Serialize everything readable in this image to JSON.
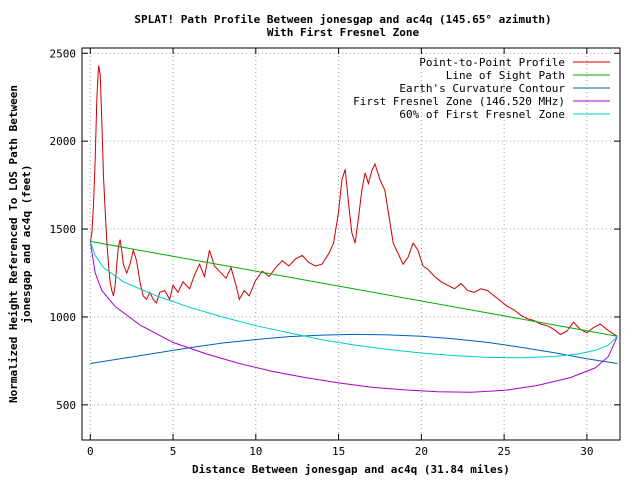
{
  "chart_data": {
    "type": "line",
    "title_line1": "SPLAT! Path Profile Between jonesgap and ac4q (145.65° azimuth)",
    "title_line2": "With First Fresnel Zone",
    "xlabel": "Distance Between jonesgap and ac4q (31.84 miles)",
    "ylabel_line1": "Normalized Height Referenced To LOS Path Between",
    "ylabel_line2": "jonesgap and ac4q (feet)",
    "xlim": [
      -0.5,
      32
    ],
    "ylim": [
      300,
      2530
    ],
    "x_ticks": [
      0,
      5,
      10,
      15,
      20,
      25,
      30
    ],
    "y_ticks": [
      500,
      1000,
      1500,
      2000,
      2500
    ],
    "grid": true,
    "legend_position": "top-right",
    "series": [
      {
        "name": "Point-to-Point Profile",
        "color": "#cc0000",
        "points": [
          [
            0.0,
            1420
          ],
          [
            0.1,
            1480
          ],
          [
            0.2,
            1650
          ],
          [
            0.3,
            1900
          ],
          [
            0.4,
            2250
          ],
          [
            0.5,
            2430
          ],
          [
            0.6,
            2380
          ],
          [
            0.7,
            2100
          ],
          [
            0.8,
            1800
          ],
          [
            0.9,
            1600
          ],
          [
            1.0,
            1430
          ],
          [
            1.1,
            1300
          ],
          [
            1.2,
            1200
          ],
          [
            1.3,
            1150
          ],
          [
            1.4,
            1120
          ],
          [
            1.5,
            1180
          ],
          [
            1.6,
            1300
          ],
          [
            1.7,
            1400
          ],
          [
            1.8,
            1440
          ],
          [
            1.9,
            1380
          ],
          [
            2.0,
            1300
          ],
          [
            2.2,
            1250
          ],
          [
            2.4,
            1300
          ],
          [
            2.6,
            1380
          ],
          [
            2.8,
            1320
          ],
          [
            3.0,
            1200
          ],
          [
            3.2,
            1120
          ],
          [
            3.4,
            1100
          ],
          [
            3.6,
            1140
          ],
          [
            3.8,
            1100
          ],
          [
            4.0,
            1080
          ],
          [
            4.2,
            1140
          ],
          [
            4.5,
            1150
          ],
          [
            4.8,
            1100
          ],
          [
            5.0,
            1180
          ],
          [
            5.3,
            1140
          ],
          [
            5.6,
            1200
          ],
          [
            6.0,
            1160
          ],
          [
            6.3,
            1240
          ],
          [
            6.6,
            1300
          ],
          [
            6.9,
            1230
          ],
          [
            7.2,
            1380
          ],
          [
            7.5,
            1290
          ],
          [
            7.8,
            1260
          ],
          [
            8.2,
            1220
          ],
          [
            8.5,
            1280
          ],
          [
            8.8,
            1180
          ],
          [
            9.0,
            1100
          ],
          [
            9.3,
            1150
          ],
          [
            9.6,
            1120
          ],
          [
            10.0,
            1210
          ],
          [
            10.4,
            1260
          ],
          [
            10.8,
            1230
          ],
          [
            11.2,
            1280
          ],
          [
            11.6,
            1320
          ],
          [
            12.0,
            1290
          ],
          [
            12.4,
            1330
          ],
          [
            12.8,
            1350
          ],
          [
            13.2,
            1310
          ],
          [
            13.6,
            1290
          ],
          [
            14.0,
            1300
          ],
          [
            14.4,
            1360
          ],
          [
            14.7,
            1420
          ],
          [
            15.0,
            1600
          ],
          [
            15.2,
            1780
          ],
          [
            15.4,
            1840
          ],
          [
            15.6,
            1650
          ],
          [
            15.8,
            1480
          ],
          [
            16.0,
            1420
          ],
          [
            16.2,
            1560
          ],
          [
            16.4,
            1720
          ],
          [
            16.6,
            1820
          ],
          [
            16.8,
            1760
          ],
          [
            17.0,
            1830
          ],
          [
            17.2,
            1870
          ],
          [
            17.5,
            1780
          ],
          [
            17.8,
            1720
          ],
          [
            18.0,
            1600
          ],
          [
            18.3,
            1420
          ],
          [
            18.6,
            1360
          ],
          [
            18.9,
            1300
          ],
          [
            19.2,
            1340
          ],
          [
            19.5,
            1420
          ],
          [
            19.8,
            1380
          ],
          [
            20.1,
            1290
          ],
          [
            20.4,
            1270
          ],
          [
            20.8,
            1230
          ],
          [
            21.2,
            1200
          ],
          [
            21.6,
            1180
          ],
          [
            22.0,
            1160
          ],
          [
            22.4,
            1190
          ],
          [
            22.8,
            1150
          ],
          [
            23.2,
            1140
          ],
          [
            23.6,
            1160
          ],
          [
            24.0,
            1150
          ],
          [
            24.4,
            1120
          ],
          [
            24.8,
            1090
          ],
          [
            25.2,
            1060
          ],
          [
            25.6,
            1040
          ],
          [
            26.0,
            1010
          ],
          [
            26.4,
            990
          ],
          [
            26.8,
            980
          ],
          [
            27.2,
            960
          ],
          [
            27.6,
            950
          ],
          [
            28.0,
            930
          ],
          [
            28.4,
            900
          ],
          [
            28.8,
            920
          ],
          [
            29.2,
            970
          ],
          [
            29.6,
            930
          ],
          [
            30.0,
            910
          ],
          [
            30.4,
            940
          ],
          [
            30.8,
            960
          ],
          [
            31.2,
            930
          ],
          [
            31.5,
            910
          ],
          [
            31.84,
            890
          ]
        ]
      },
      {
        "name": "Line of Sight Path",
        "color": "#00aa00",
        "points": [
          [
            0,
            1430
          ],
          [
            31.84,
            890
          ]
        ]
      },
      {
        "name": "Earth's Curvature Contour",
        "color": "#0060c0",
        "points": [
          [
            0,
            735
          ],
          [
            2,
            765
          ],
          [
            4,
            795
          ],
          [
            6,
            825
          ],
          [
            8,
            852
          ],
          [
            10,
            872
          ],
          [
            12,
            888
          ],
          [
            14,
            897
          ],
          [
            16,
            901
          ],
          [
            18,
            898
          ],
          [
            20,
            890
          ],
          [
            22,
            875
          ],
          [
            24,
            855
          ],
          [
            26,
            828
          ],
          [
            28,
            797
          ],
          [
            30,
            762
          ],
          [
            31.84,
            735
          ]
        ]
      },
      {
        "name": "First Fresnel Zone (146.520 MHz)",
        "color": "#aa00cc",
        "points": [
          [
            0,
            1430
          ],
          [
            0.3,
            1250
          ],
          [
            0.7,
            1150
          ],
          [
            1.5,
            1060
          ],
          [
            3,
            955
          ],
          [
            5,
            855
          ],
          [
            7,
            790
          ],
          [
            9,
            735
          ],
          [
            11,
            690
          ],
          [
            13,
            655
          ],
          [
            15,
            625
          ],
          [
            17,
            600
          ],
          [
            19,
            585
          ],
          [
            21,
            575
          ],
          [
            23,
            572
          ],
          [
            25,
            582
          ],
          [
            27,
            610
          ],
          [
            29,
            655
          ],
          [
            30.5,
            710
          ],
          [
            31.3,
            775
          ],
          [
            31.84,
            890
          ]
        ]
      },
      {
        "name": "60% of First Fresnel Zone",
        "color": "#00cccc",
        "points": [
          [
            0,
            1430
          ],
          [
            0.3,
            1350
          ],
          [
            0.8,
            1280
          ],
          [
            2,
            1200
          ],
          [
            4,
            1120
          ],
          [
            6,
            1055
          ],
          [
            8,
            1000
          ],
          [
            10,
            950
          ],
          [
            12,
            910
          ],
          [
            14,
            870
          ],
          [
            16,
            840
          ],
          [
            18,
            815
          ],
          [
            20,
            795
          ],
          [
            22,
            780
          ],
          [
            24,
            770
          ],
          [
            26,
            768
          ],
          [
            28,
            775
          ],
          [
            29.5,
            790
          ],
          [
            30.5,
            810
          ],
          [
            31.3,
            840
          ],
          [
            31.84,
            890
          ]
        ]
      }
    ]
  }
}
